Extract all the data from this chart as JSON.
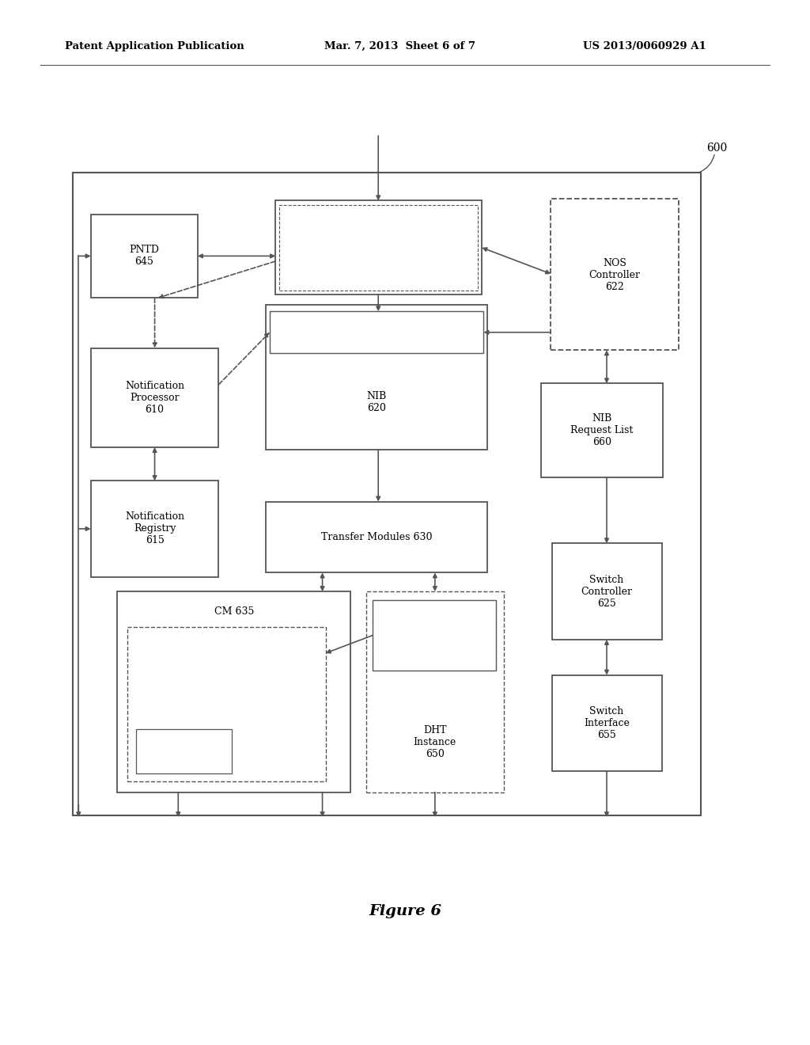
{
  "header_left": "Patent Application Publication",
  "header_mid": "Mar. 7, 2013  Sheet 6 of 7",
  "header_right": "US 2013/0060929 A1",
  "bg_color": "#ffffff",
  "line_color": "#555555",
  "text_color": "#000000",
  "figure_caption": "Figure 6",
  "diagram_ref": "600"
}
